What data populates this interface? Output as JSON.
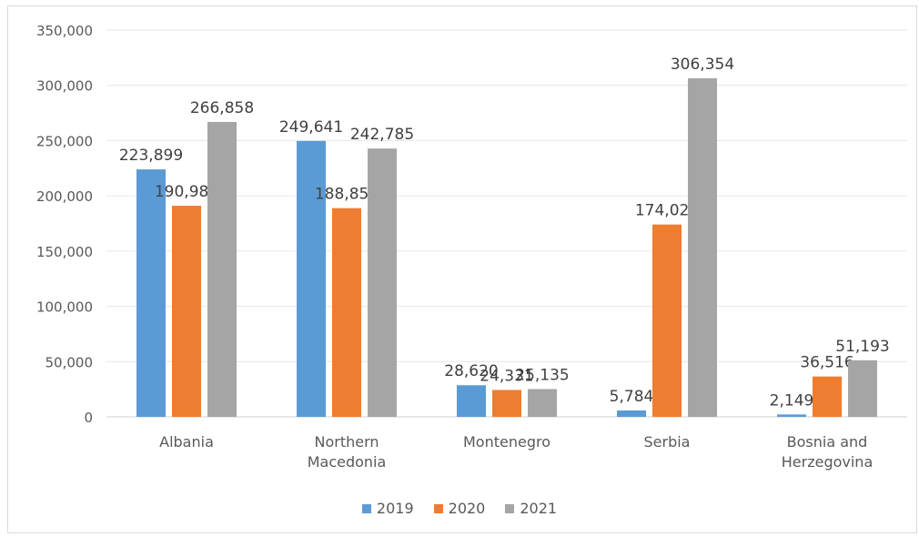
{
  "chart_data": {
    "type": "bar",
    "title": "",
    "xlabel": "",
    "ylabel": "",
    "ylim": [
      0,
      350000
    ],
    "yticks": [
      0,
      50000,
      100000,
      150000,
      200000,
      250000,
      300000,
      350000
    ],
    "ytick_labels": [
      "0",
      "50,000",
      "100,000",
      "150,000",
      "200,000",
      "250,000",
      "300,000",
      "350,000"
    ],
    "grid": true,
    "legend_position": "bottom",
    "categories": [
      [
        "Albania"
      ],
      [
        "Northern",
        "Macedonia"
      ],
      [
        "Montenegro"
      ],
      [
        "Serbia"
      ],
      [
        "Bosnia and",
        "Herzegovina"
      ]
    ],
    "series": [
      {
        "name": "2019",
        "color": "#5B9BD5",
        "values": [
          223899,
          249641,
          28620,
          5784,
          2149
        ],
        "labels": [
          "223,899",
          "249,641",
          "28,620",
          "5,784",
          "2,149"
        ]
      },
      {
        "name": "2020",
        "color": "#ED7D31",
        "values": [
          190980,
          188859,
          24331,
          174029,
          36516
        ],
        "labels": [
          "190,980",
          "188,859",
          "24,331",
          "174,029",
          "36,516"
        ]
      },
      {
        "name": "2021",
        "color": "#A5A5A5",
        "values": [
          266858,
          242785,
          25135,
          306354,
          51193
        ],
        "labels": [
          "266,858",
          "242,785",
          "25,135",
          "306,354",
          "51,193"
        ]
      }
    ]
  }
}
